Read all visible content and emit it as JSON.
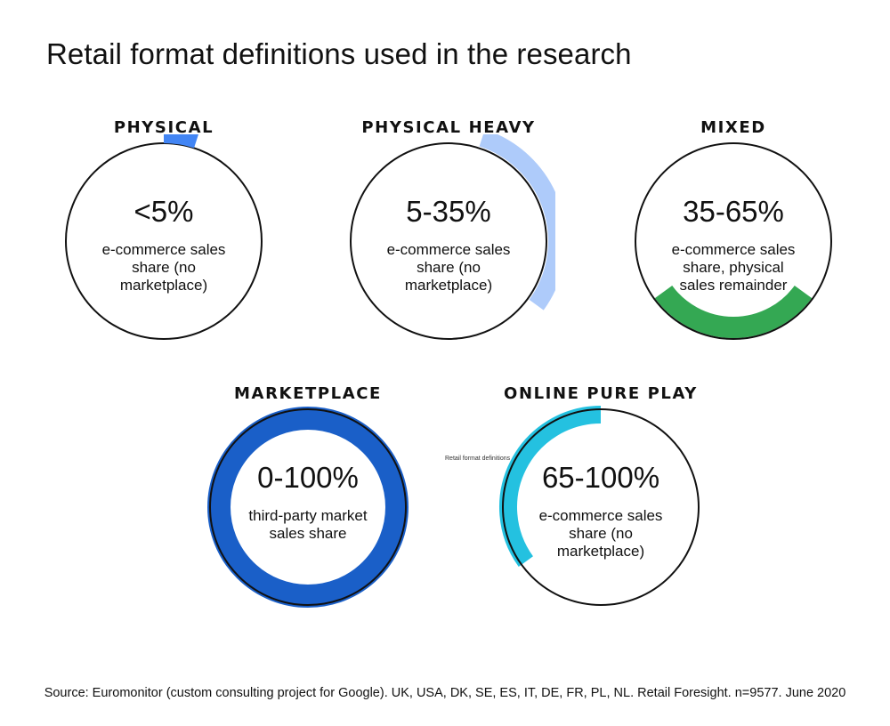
{
  "title": "Retail format definitions used in the research",
  "formats": [
    {
      "name": "PHYSICAL",
      "value": "<5%",
      "description": "e-commerce sales share (no marketplace)",
      "arc_color": "#4285f4",
      "arc_fraction": 0.05
    },
    {
      "name": "PHYSICAL HEAVY",
      "value": "5-35%",
      "description": "e-commerce sales share (no marketplace)",
      "arc_color": "#aecbfa",
      "arc_fraction": 0.3
    },
    {
      "name": "MIXED",
      "value": "35-65%",
      "description": "e-commerce sales share, physical sales remainder",
      "arc_color": "#34a853",
      "arc_fraction": 0.3
    },
    {
      "name": "MARKETPLACE",
      "value": "0-100%",
      "description": "third-party market sales share",
      "arc_color": "#1a5fc8",
      "arc_fraction": 1.0
    },
    {
      "name": "ONLINE PURE PLAY",
      "value": "65-100%",
      "description": "e-commerce sales share (no marketplace)",
      "arc_color": "#24c1e0",
      "arc_fraction": 0.35
    }
  ],
  "stray_label": "Retail format definitions",
  "source": "Source: Euromonitor (custom consulting project for Google). UK, USA, DK, SE, ES, IT, DE, FR, PL, NL. Retail Foresight. n=9577. June 2020"
}
